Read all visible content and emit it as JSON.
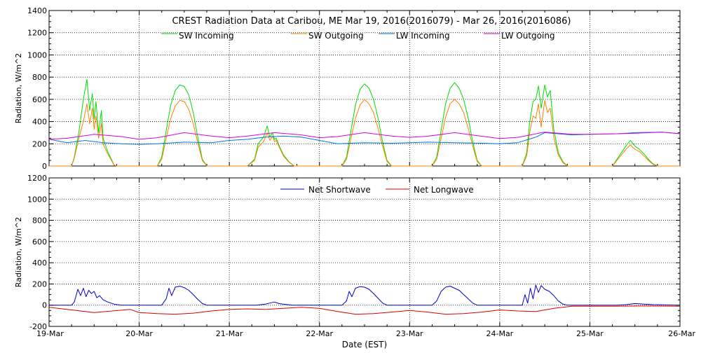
{
  "title": "CREST Radiation Data at Caribou, ME   Mar 19, 2016(2016079) - Mar 26, 2016(2016086)",
  "xlabel": "Date (EST)",
  "colors": {
    "sw_in": "#00dd00",
    "sw_out": "#ff7f00",
    "lw_in": "#0077dd",
    "lw_out": "#dd00dd",
    "net_sw": "#0000cc",
    "net_lw": "#dd0000",
    "axis": "#000000",
    "grid": "#000000"
  },
  "chart_data": [
    {
      "type": "line",
      "ylabel": "Radiation, W/m^2",
      "ylim": [
        0,
        1400
      ],
      "yticks": [
        "0",
        "200",
        "400",
        "600",
        "800",
        "1000",
        "1200",
        "1400"
      ],
      "ytick_values": [
        0,
        200,
        400,
        600,
        800,
        1000,
        1200,
        1400
      ],
      "xlim": [
        0,
        7
      ],
      "xticks": [
        "19-Mar",
        "20-Mar",
        "21-Mar",
        "22-Mar",
        "23-Mar",
        "24-Mar",
        "25-Mar",
        "26-Mar"
      ],
      "grid": true,
      "legend": "top",
      "series": [
        {
          "name": "SW Incoming",
          "color_key": "sw_in",
          "x": [
            0.0,
            0.25,
            0.28,
            0.33,
            0.38,
            0.42,
            0.45,
            0.48,
            0.5,
            0.52,
            0.55,
            0.58,
            0.6,
            0.65,
            0.72,
            0.75,
            0.8,
            1.0,
            1.2,
            1.25,
            1.3,
            1.35,
            1.4,
            1.45,
            1.5,
            1.55,
            1.6,
            1.65,
            1.7,
            1.75,
            1.8,
            2.0,
            2.2,
            2.28,
            2.32,
            2.38,
            2.42,
            2.45,
            2.48,
            2.5,
            2.52,
            2.56,
            2.6,
            2.66,
            2.72,
            2.75,
            3.0,
            3.25,
            3.3,
            3.35,
            3.4,
            3.45,
            3.5,
            3.55,
            3.6,
            3.65,
            3.7,
            3.75,
            3.8,
            4.0,
            4.25,
            4.3,
            4.35,
            4.4,
            4.45,
            4.5,
            4.55,
            4.6,
            4.65,
            4.7,
            4.75,
            4.8,
            5.0,
            5.25,
            5.3,
            5.33,
            5.37,
            5.4,
            5.43,
            5.46,
            5.5,
            5.53,
            5.56,
            5.6,
            5.65,
            5.7,
            5.75,
            6.0,
            6.25,
            6.3,
            6.35,
            6.4,
            6.45,
            6.5,
            6.55,
            6.6,
            6.65,
            6.7,
            6.75,
            7.0
          ],
          "values": [
            0,
            0,
            80,
            300,
            600,
            780,
            500,
            650,
            420,
            580,
            300,
            500,
            250,
            130,
            10,
            0,
            0,
            0,
            0,
            80,
            320,
            550,
            680,
            730,
            715,
            640,
            480,
            260,
            60,
            0,
            0,
            0,
            0,
            60,
            200,
            260,
            360,
            260,
            300,
            240,
            250,
            170,
            100,
            40,
            0,
            0,
            0,
            0,
            80,
            320,
            550,
            690,
            740,
            700,
            600,
            430,
            220,
            50,
            0,
            0,
            0,
            80,
            320,
            560,
            700,
            750,
            700,
            600,
            430,
            220,
            50,
            0,
            0,
            0,
            120,
            380,
            580,
            600,
            720,
            520,
            730,
            620,
            680,
            330,
            120,
            40,
            0,
            0,
            0,
            60,
            120,
            180,
            230,
            180,
            150,
            110,
            60,
            20,
            0,
            0
          ]
        },
        {
          "name": "SW Outgoing",
          "color_key": "sw_out",
          "x": [
            0.0,
            0.25,
            0.28,
            0.33,
            0.38,
            0.42,
            0.45,
            0.48,
            0.5,
            0.52,
            0.55,
            0.58,
            0.6,
            0.65,
            0.72,
            0.75,
            0.8,
            1.0,
            1.2,
            1.25,
            1.3,
            1.35,
            1.4,
            1.45,
            1.5,
            1.55,
            1.6,
            1.65,
            1.7,
            1.75,
            1.8,
            2.0,
            2.2,
            2.28,
            2.32,
            2.38,
            2.42,
            2.45,
            2.48,
            2.5,
            2.52,
            2.56,
            2.6,
            2.66,
            2.72,
            2.75,
            3.0,
            3.25,
            3.3,
            3.35,
            3.4,
            3.45,
            3.5,
            3.55,
            3.6,
            3.65,
            3.7,
            3.75,
            3.8,
            4.0,
            4.25,
            4.3,
            4.35,
            4.4,
            4.45,
            4.5,
            4.55,
            4.6,
            4.65,
            4.7,
            4.75,
            4.8,
            5.0,
            5.25,
            5.3,
            5.33,
            5.37,
            5.4,
            5.43,
            5.46,
            5.5,
            5.53,
            5.56,
            5.6,
            5.65,
            5.7,
            5.75,
            6.0,
            6.25,
            6.3,
            6.35,
            6.4,
            6.45,
            6.5,
            6.55,
            6.6,
            6.65,
            6.7,
            6.75,
            7.0
          ],
          "values": [
            0,
            0,
            70,
            250,
            400,
            560,
            380,
            520,
            330,
            450,
            250,
            380,
            200,
            110,
            10,
            0,
            0,
            0,
            0,
            60,
            250,
            430,
            540,
            590,
            580,
            510,
            380,
            210,
            50,
            0,
            0,
            0,
            0,
            50,
            170,
            220,
            300,
            230,
            270,
            220,
            230,
            160,
            90,
            35,
            0,
            0,
            0,
            0,
            60,
            250,
            430,
            550,
            600,
            560,
            480,
            340,
            180,
            40,
            0,
            0,
            0,
            60,
            250,
            440,
            560,
            600,
            560,
            480,
            340,
            180,
            40,
            0,
            0,
            0,
            90,
            290,
            450,
            430,
            560,
            350,
            590,
            480,
            520,
            260,
            100,
            30,
            0,
            0,
            0,
            50,
            100,
            150,
            190,
            150,
            130,
            90,
            50,
            15,
            0,
            0
          ]
        },
        {
          "name": "LW Incoming",
          "color_key": "lw_in",
          "x": [
            0.0,
            0.2,
            0.4,
            0.6,
            0.8,
            1.0,
            1.2,
            1.5,
            1.8,
            2.0,
            2.2,
            2.4,
            2.6,
            2.8,
            3.0,
            3.2,
            3.5,
            3.8,
            4.0,
            4.2,
            4.5,
            4.8,
            5.0,
            5.2,
            5.4,
            5.5,
            5.8,
            6.0,
            6.3,
            6.5,
            6.8,
            7.0
          ],
          "values": [
            240,
            210,
            230,
            210,
            200,
            195,
            200,
            215,
            210,
            230,
            240,
            260,
            270,
            260,
            230,
            200,
            210,
            205,
            210,
            215,
            210,
            205,
            200,
            210,
            260,
            300,
            280,
            285,
            290,
            300,
            305,
            290
          ]
        },
        {
          "name": "LW Outgoing",
          "color_key": "lw_out",
          "x": [
            0.0,
            0.2,
            0.5,
            0.8,
            1.0,
            1.2,
            1.5,
            1.8,
            2.0,
            2.2,
            2.5,
            2.8,
            3.0,
            3.2,
            3.5,
            3.8,
            4.0,
            4.2,
            4.5,
            4.8,
            5.0,
            5.2,
            5.5,
            5.8,
            6.0,
            6.3,
            6.5,
            6.8,
            7.0
          ],
          "values": [
            240,
            250,
            285,
            265,
            240,
            255,
            300,
            270,
            255,
            270,
            300,
            280,
            255,
            265,
            300,
            270,
            258,
            268,
            300,
            268,
            248,
            258,
            305,
            285,
            285,
            290,
            295,
            305,
            290
          ]
        }
      ]
    },
    {
      "type": "line",
      "ylabel": "Radiation, W/m^2",
      "ylim": [
        -200,
        1200
      ],
      "yticks": [
        "-200",
        "0",
        "200",
        "400",
        "600",
        "800",
        "1000",
        "1200"
      ],
      "ytick_values": [
        -200,
        0,
        200,
        400,
        600,
        800,
        1000,
        1200
      ],
      "xlim": [
        0,
        7
      ],
      "xticks": [
        "19-Mar",
        "20-Mar",
        "21-Mar",
        "22-Mar",
        "23-Mar",
        "24-Mar",
        "25-Mar",
        "26-Mar"
      ],
      "grid": true,
      "legend": "top",
      "series": [
        {
          "name": "Net Shortwave",
          "color_key": "net_sw",
          "x": [
            0.0,
            0.25,
            0.28,
            0.32,
            0.35,
            0.38,
            0.41,
            0.44,
            0.47,
            0.5,
            0.53,
            0.56,
            0.6,
            0.65,
            0.72,
            0.8,
            1.0,
            1.25,
            1.3,
            1.33,
            1.36,
            1.4,
            1.45,
            1.5,
            1.55,
            1.6,
            1.65,
            1.7,
            1.75,
            2.0,
            2.3,
            2.4,
            2.45,
            2.5,
            2.55,
            2.6,
            2.7,
            3.0,
            3.25,
            3.3,
            3.33,
            3.36,
            3.4,
            3.45,
            3.5,
            3.55,
            3.6,
            3.65,
            3.7,
            3.75,
            4.0,
            4.25,
            4.3,
            4.35,
            4.4,
            4.45,
            4.5,
            4.55,
            4.6,
            4.65,
            4.7,
            4.75,
            5.0,
            5.25,
            5.28,
            5.31,
            5.34,
            5.37,
            5.4,
            5.43,
            5.46,
            5.5,
            5.55,
            5.6,
            5.65,
            5.7,
            5.75,
            6.0,
            6.3,
            6.4,
            6.5,
            6.6,
            6.7,
            7.0
          ],
          "values": [
            0,
            0,
            30,
            150,
            90,
            160,
            80,
            140,
            110,
            130,
            70,
            90,
            50,
            30,
            10,
            0,
            0,
            0,
            60,
            160,
            90,
            170,
            180,
            165,
            140,
            100,
            55,
            15,
            0,
            0,
            0,
            10,
            20,
            30,
            15,
            10,
            0,
            0,
            0,
            40,
            130,
            80,
            160,
            175,
            170,
            150,
            110,
            65,
            20,
            0,
            0,
            0,
            40,
            130,
            170,
            180,
            160,
            140,
            100,
            60,
            20,
            0,
            0,
            0,
            100,
            20,
            160,
            60,
            190,
            120,
            185,
            150,
            130,
            90,
            40,
            10,
            0,
            0,
            0,
            5,
            15,
            10,
            5,
            0
          ]
        },
        {
          "name": "Net Longwave",
          "color_key": "net_lw",
          "x": [
            0.0,
            0.2,
            0.4,
            0.5,
            0.7,
            0.9,
            1.0,
            1.2,
            1.4,
            1.6,
            1.8,
            2.0,
            2.2,
            2.4,
            2.6,
            2.8,
            3.0,
            3.2,
            3.4,
            3.6,
            3.8,
            4.0,
            4.2,
            4.4,
            4.6,
            4.8,
            5.0,
            5.2,
            5.4,
            5.6,
            5.8,
            6.0,
            6.3,
            6.6,
            7.0
          ],
          "values": [
            -20,
            -40,
            -60,
            -70,
            -55,
            -40,
            -70,
            -80,
            -85,
            -75,
            -55,
            -40,
            -35,
            -40,
            -30,
            -20,
            -30,
            -60,
            -85,
            -80,
            -65,
            -50,
            -65,
            -85,
            -80,
            -65,
            -45,
            -55,
            -60,
            -30,
            -10,
            -10,
            -10,
            -8,
            -10
          ]
        }
      ]
    }
  ]
}
